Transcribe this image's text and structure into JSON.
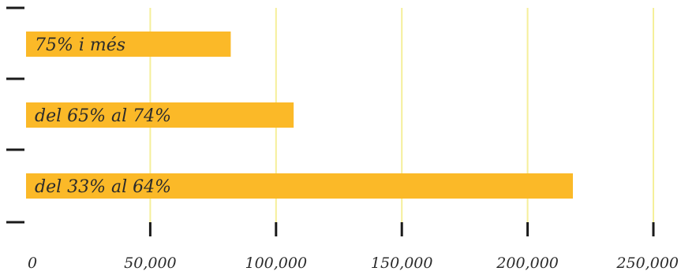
{
  "chart_data": {
    "type": "bar",
    "orientation": "horizontal",
    "categories": [
      "75% i més",
      "del 65% al 74%",
      "del 33% al 64%"
    ],
    "values": [
      82000,
      107000,
      218000
    ],
    "xlim": [
      0,
      250000
    ],
    "xticks": [
      0,
      50000,
      100000,
      150000,
      200000,
      250000
    ],
    "xtick_labels": [
      "0",
      "50,000",
      "100,000",
      "150,000",
      "200,000",
      "250,000"
    ],
    "title": "",
    "xlabel": "",
    "ylabel": "",
    "grid": "vertical",
    "bar_color": "#fbb928",
    "grid_color": "#f5ef9a",
    "axis_color": "#1a1a1a"
  }
}
